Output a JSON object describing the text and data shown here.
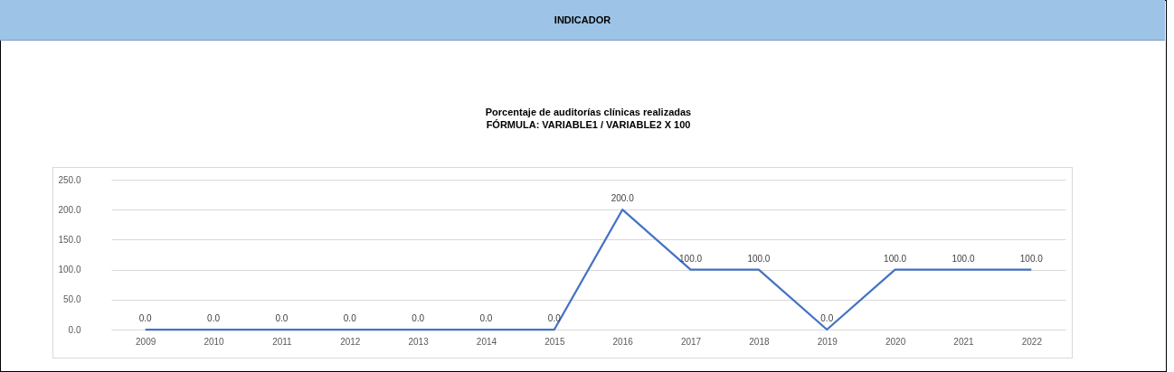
{
  "chart_data": {
    "type": "line",
    "title": "Porcentaje de auditorías clínicas realizadas",
    "subtitle": "FÓRMULA: VARIABLE1 / VARIABLE2 X 100",
    "annotations": [
      "INDICADOR"
    ],
    "categories": [
      "2009",
      "2010",
      "2011",
      "2012",
      "2013",
      "2014",
      "2015",
      "2016",
      "2017",
      "2018",
      "2019",
      "2020",
      "2021",
      "2022"
    ],
    "series": [
      {
        "color": "#4472c4",
        "values": [
          0,
          0,
          0,
          0,
          0,
          0,
          0,
          200,
          100,
          100,
          0,
          100,
          100,
          100
        ],
        "value_labels": [
          "0.0",
          "0.0",
          "0.0",
          "0.0",
          "0.0",
          "0.0",
          "0.0",
          "200.0",
          "100.0",
          "100.0",
          "0.0",
          "100.0",
          "100.0",
          "100.0"
        ]
      }
    ],
    "ylim": [
      0,
      250
    ],
    "yticks": [
      {
        "value": 0,
        "label": "0.0"
      },
      {
        "value": 50,
        "label": "50.0"
      },
      {
        "value": 100,
        "label": "100.0"
      },
      {
        "value": 150,
        "label": "150.0"
      },
      {
        "value": 200,
        "label": "200.0"
      },
      {
        "value": 250,
        "label": "250.0"
      }
    ],
    "grid": "y",
    "marker": "none",
    "line_style": "solid",
    "legend": false
  }
}
